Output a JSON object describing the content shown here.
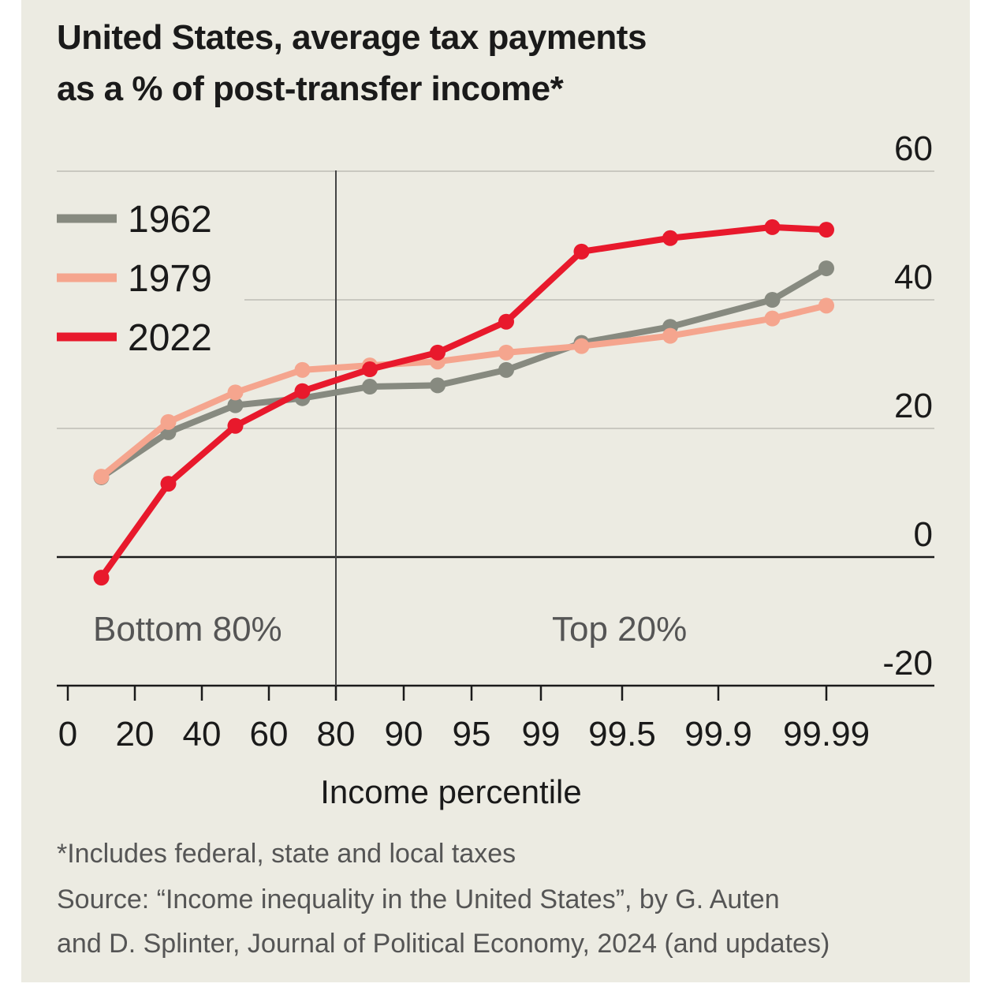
{
  "chart_data": {
    "type": "line",
    "title": "United States, average tax payments",
    "title_line2": "as a % of post-transfer income*",
    "xlabel": "Income percentile",
    "ylabel": "",
    "x_ticks": [
      "0",
      "20",
      "40",
      "60",
      "80",
      "90",
      "95",
      "99",
      "99.5",
      "99.9",
      "99.99"
    ],
    "y_ticks": [
      "60",
      "40",
      "20",
      "0",
      "-20"
    ],
    "ylim": [
      -20,
      60
    ],
    "grid": true,
    "legend_position": "top-left",
    "regions": [
      "Bottom 80%",
      "Top 20%"
    ],
    "x_positions": [
      0.5,
      1.5,
      2.5,
      3.5,
      4.5,
      5.5,
      6.5,
      7.5,
      8.5,
      9.5,
      10
    ],
    "series": [
      {
        "name": "1962",
        "color": "#878a80",
        "values": [
          12.4,
          19.4,
          23.6,
          24.7,
          26.5,
          26.7,
          29.1,
          33.3,
          35.8,
          40.0,
          44.9
        ]
      },
      {
        "name": "1979",
        "color": "#f5a58e",
        "values": [
          12.5,
          21.0,
          25.6,
          29.1,
          29.8,
          30.4,
          31.8,
          32.8,
          34.4,
          37.1,
          39.1
        ]
      },
      {
        "name": "2022",
        "color": "#e8192c",
        "values": [
          -3.2,
          11.4,
          20.4,
          25.8,
          29.2,
          31.8,
          36.6,
          47.5,
          49.6,
          51.3,
          50.9
        ]
      }
    ],
    "footnote": "*Includes federal, state and local taxes",
    "source_line1": "Source: “Income inequality in the United States”, by G. Auten",
    "source_line2": "and D. Splinter, Journal of Political Economy, 2024 (and updates)"
  }
}
